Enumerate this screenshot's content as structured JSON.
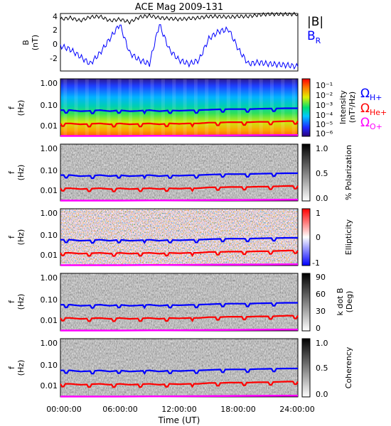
{
  "chart_data": [
    {
      "type": "line",
      "title": "ACE Mag 2009-131",
      "ylabel": "B",
      "yunit": "(nT)",
      "ylim": [
        -4,
        4
      ],
      "yticks": [
        "4",
        "2",
        "0",
        "-2"
      ],
      "series": [
        {
          "name": "|B|",
          "color": "#000000",
          "x_hours": [
            0,
            1,
            2,
            3,
            4,
            5,
            6,
            7,
            8,
            9,
            10,
            11,
            12,
            13,
            14,
            15,
            16,
            17,
            18,
            19,
            20,
            21,
            22,
            23,
            24
          ],
          "values": [
            3.2,
            3.4,
            3.0,
            3.5,
            3.6,
            3.0,
            3.2,
            2.8,
            3.5,
            3.7,
            3.4,
            3.3,
            3.2,
            3.3,
            3.4,
            3.6,
            3.6,
            3.5,
            3.6,
            3.6,
            3.8,
            3.9,
            3.9,
            3.9,
            3.9
          ]
        },
        {
          "name": "BR",
          "label_main": "B",
          "label_sub": "R",
          "color": "#0000ff",
          "x_hours": [
            0,
            1,
            2,
            3,
            4,
            5,
            6,
            7,
            8,
            9,
            10,
            11,
            12,
            13,
            14,
            15,
            16,
            17,
            18,
            19,
            20,
            21,
            22,
            23,
            24
          ],
          "values": [
            -0.5,
            -1.0,
            -2.0,
            -3.0,
            -1.5,
            0.5,
            2.5,
            -1.5,
            -2.5,
            -3.0,
            2.5,
            -1.0,
            -2.5,
            -3.0,
            -2.5,
            0.5,
            1.5,
            1.8,
            -1.0,
            -3.0,
            -2.8,
            -3.0,
            -3.1,
            -3.2,
            -3.4
          ]
        }
      ]
    },
    {
      "type": "heatmap",
      "panel": "intensity",
      "ylabel": "f",
      "yunit": "(Hz)",
      "yscale": "log",
      "yticks": [
        "1.00",
        "0.10",
        "0.01"
      ],
      "colorbar": {
        "scale": "log",
        "ticks": [
          "10⁻¹",
          "10⁻²",
          "10⁻³",
          "10⁻⁴",
          "10⁻⁵",
          "10⁻⁶"
        ],
        "label": "Intensity",
        "unit": "(nT²/Hz)",
        "colors": [
          "#2b007a",
          "#1e28ff",
          "#00c8ff",
          "#00e070",
          "#e0f000",
          "#ff7800",
          "#ff0000"
        ]
      }
    },
    {
      "type": "heatmap",
      "panel": "polarization",
      "ylabel": "f",
      "yunit": "(Hz)",
      "yticks": [
        "1.00",
        "0.10",
        "0.01"
      ],
      "colorbar": {
        "ticks": [
          "1.0",
          "0.5",
          "0.0"
        ],
        "label": "% Polarization",
        "colors": [
          "#ffffff",
          "#000000"
        ]
      }
    },
    {
      "type": "heatmap",
      "panel": "ellipticity",
      "ylabel": "f",
      "yunit": "(Hz)",
      "yticks": [
        "1.00",
        "0.10",
        "0.01"
      ],
      "colorbar": {
        "ticks": [
          "1",
          "0",
          "-1"
        ],
        "label": "Ellipticity",
        "colors": [
          "#0000ff",
          "#ffffff",
          "#ff0000"
        ]
      }
    },
    {
      "type": "heatmap",
      "panel": "kdotb",
      "ylabel": "f",
      "yunit": "(Hz)",
      "yticks": [
        "1.00",
        "0.10",
        "0.01"
      ],
      "colorbar": {
        "ticks": [
          "90",
          "60",
          "30",
          "0"
        ],
        "label": "k dot B",
        "unit": "(Deg)",
        "colors": [
          "#ffffff",
          "#000000"
        ]
      }
    },
    {
      "type": "heatmap",
      "panel": "coherency",
      "ylabel": "f",
      "yunit": "(Hz)",
      "yticks": [
        "1.00",
        "0.10",
        "0.01"
      ],
      "colorbar": {
        "ticks": [
          "1.0",
          "0.5",
          "0.0"
        ],
        "label": "Coherency",
        "colors": [
          "#ffffff",
          "#000000"
        ]
      }
    }
  ],
  "gyrofrequency_lines": [
    {
      "label_main": "Ω",
      "label_sub": "H+",
      "color": "#0000ff",
      "x_hours": [
        0,
        1,
        2,
        3,
        4,
        5,
        6,
        7,
        8,
        9,
        10,
        11,
        12,
        13,
        14,
        15,
        16,
        17,
        18,
        19,
        20,
        21,
        22,
        23,
        24
      ],
      "freq_hz": [
        0.045,
        0.045,
        0.04,
        0.042,
        0.045,
        0.04,
        0.045,
        0.04,
        0.042,
        0.045,
        0.04,
        0.044,
        0.042,
        0.044,
        0.045,
        0.047,
        0.049,
        0.05,
        0.05,
        0.05,
        0.052,
        0.053,
        0.054,
        0.055,
        0.055
      ]
    },
    {
      "label_main": "Ω",
      "label_sub": "He+",
      "color": "#ff0000",
      "x_hours": [
        0,
        1,
        2,
        3,
        4,
        5,
        6,
        7,
        8,
        9,
        10,
        11,
        12,
        13,
        14,
        15,
        16,
        17,
        18,
        19,
        20,
        21,
        22,
        23,
        24
      ],
      "freq_hz": [
        0.011,
        0.011,
        0.01,
        0.0105,
        0.011,
        0.01,
        0.011,
        0.01,
        0.0105,
        0.011,
        0.01,
        0.011,
        0.0105,
        0.011,
        0.011,
        0.012,
        0.012,
        0.0125,
        0.0125,
        0.0125,
        0.013,
        0.013,
        0.0135,
        0.014,
        0.014
      ]
    },
    {
      "label_main": "Ω",
      "label_sub": "O+",
      "color": "#ff00ff",
      "x_hours": [
        0,
        6,
        12,
        18,
        24
      ],
      "freq_hz": [
        0.0029,
        0.0029,
        0.003,
        0.0031,
        0.0032
      ]
    }
  ],
  "x_axis": {
    "label": "Time (UT)",
    "ticks": [
      "00:00:00",
      "06:00:00",
      "12:00:00",
      "18:00:00",
      "24:00:00"
    ],
    "range_hours": [
      0,
      24
    ]
  },
  "legend_top": {
    "b_abs": "|B|",
    "br_main": "B",
    "br_sub": "R"
  }
}
